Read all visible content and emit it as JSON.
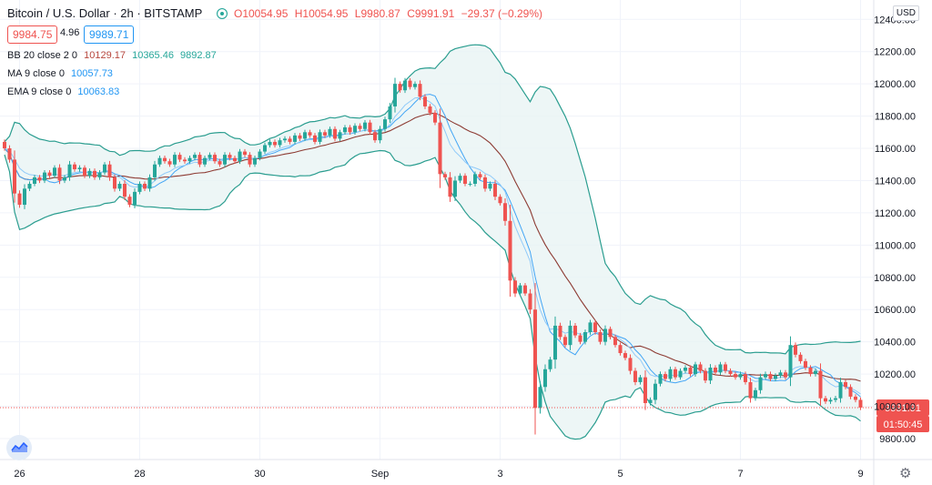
{
  "header": {
    "symbol": "Bitcoin / U.S. Dollar · 2h · BITSTAMP",
    "open": "O10054.95",
    "high": "H10054.95",
    "low": "L9980.87",
    "close": "C9991.91",
    "change": "−29.37 (−0.29%)",
    "bid": "9984.75",
    "spread": "4.96",
    "ask": "9989.71"
  },
  "indicators": [
    {
      "label": "BB 20 close 2 0",
      "values": [
        "10129.17",
        "10365.46",
        "9892.87"
      ],
      "colors": [
        "#b7473e",
        "#26a69a",
        "#26a69a"
      ]
    },
    {
      "label": "MA 9 close 0",
      "values": [
        "10057.73"
      ],
      "colors": [
        "#2196f3"
      ]
    },
    {
      "label": "EMA 9 close 0",
      "values": [
        "10063.83"
      ],
      "colors": [
        "#2196f3"
      ]
    }
  ],
  "currency": "USD",
  "last_price_label": "9991.91",
  "countdown": "01:50:45",
  "colors": {
    "up": "#26a69a",
    "down": "#ef5350",
    "bb_line": "#2a9d8f",
    "bb_fill": "#e8f4f4",
    "ma": "#8d3b33",
    "ema": "#42a5f5"
  },
  "chart_data": {
    "type": "candlestick",
    "title": "Bitcoin / U.S. Dollar · 2h · BITSTAMP",
    "x_ticks": [
      {
        "label": "26",
        "index": 3
      },
      {
        "label": "28",
        "index": 27
      },
      {
        "label": "30",
        "index": 51
      },
      {
        "label": "Sep",
        "index": 75
      },
      {
        "label": "3",
        "index": 99
      },
      {
        "label": "5",
        "index": 123
      },
      {
        "label": "7",
        "index": 147
      },
      {
        "label": "9",
        "index": 171
      }
    ],
    "y_ticks": [
      9800,
      10000,
      10200,
      10400,
      10600,
      10800,
      11000,
      11200,
      11400,
      11600,
      11800,
      12000,
      12200,
      12400
    ],
    "y_tick_labels": [
      "9800.00",
      "10000.00",
      "10200.00",
      "10400.00",
      "10600.00",
      "10800.00",
      "11000.00",
      "11200.00",
      "11400.00",
      "11600.00",
      "11800.00",
      "12000.00",
      "12200.00",
      "12400.00"
    ],
    "ylim": [
      9670,
      12520
    ],
    "closes": [
      11600,
      11530,
      11320,
      11250,
      11350,
      11380,
      11420,
      11400,
      11450,
      11430,
      11480,
      11400,
      11420,
      11500,
      11470,
      11480,
      11430,
      11460,
      11420,
      11450,
      11500,
      11420,
      11350,
      11380,
      11300,
      11250,
      11330,
      11380,
      11350,
      11420,
      11500,
      11540,
      11520,
      11500,
      11560,
      11530,
      11520,
      11540,
      11560,
      11500,
      11540,
      11560,
      11520,
      11500,
      11560,
      11540,
      11520,
      11580,
      11560,
      11500,
      11540,
      11580,
      11620,
      11640,
      11620,
      11650,
      11660,
      11640,
      11680,
      11660,
      11700,
      11680,
      11640,
      11700,
      11680,
      11720,
      11660,
      11700,
      11730,
      11700,
      11740,
      11720,
      11760,
      11700,
      11650,
      11720,
      11780,
      11860,
      12000,
      11960,
      12020,
      11980,
      12000,
      11920,
      11860,
      11820,
      11760,
      11440,
      11420,
      11300,
      11400,
      11430,
      11380,
      11380,
      11440,
      11420,
      11350,
      11380,
      11300,
      11260,
      11150,
      10780,
      10700,
      10750,
      10700,
      10600,
      9990,
      10120,
      10230,
      10290,
      10500,
      10430,
      10380,
      10500,
      10440,
      10400,
      10460,
      10520,
      10460,
      10400,
      10480,
      10430,
      10380,
      10330,
      10300,
      10220,
      10150,
      10180,
      10020,
      10040,
      10140,
      10200,
      10170,
      10230,
      10180,
      10220,
      10240,
      10200,
      10260,
      10220,
      10160,
      10240,
      10210,
      10260,
      10220,
      10200,
      10180,
      10200,
      10150,
      10050,
      10100,
      10180,
      10200,
      10170,
      10190,
      10210,
      10180,
      10380,
      10320,
      10280,
      10240,
      10200,
      10220,
      10050,
      10030,
      10040,
      10050,
      10150,
      10120,
      10060,
      10040,
      9992
    ],
    "bb_upper_last": 10365.46,
    "bb_basis_last": 10129.17,
    "bb_lower_last": 9892.87,
    "ma_last": 10057.73,
    "ema_last": 10063.83,
    "last_close": 9991.91
  }
}
